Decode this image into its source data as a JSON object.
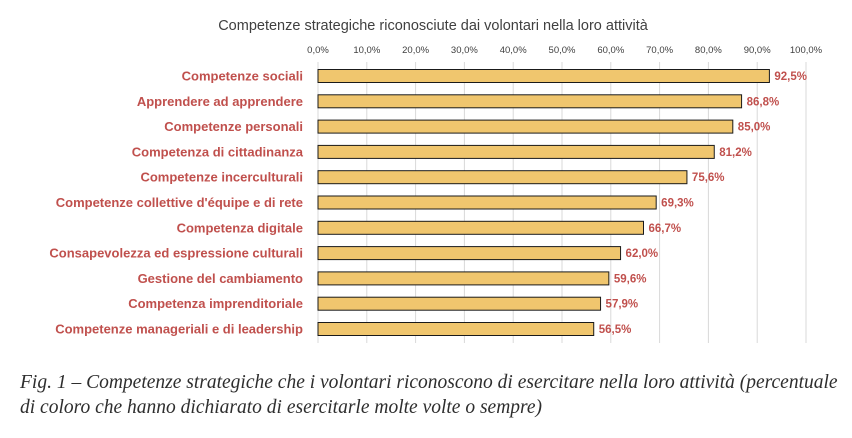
{
  "chart_data": {
    "type": "bar",
    "orientation": "horizontal",
    "title": "Competenze strategiche riconosciute dai volontari nella loro attività",
    "categories": [
      "Competenze sociali",
      "Apprendere ad apprendere",
      "Competenze personali",
      "Competenza di cittadinanza",
      "Competenze incerculturali",
      "Competenze collettive d'équipe e di rete",
      "Competenza digitale",
      "Consapevolezza ed espressione culturali",
      "Gestione del cambiamento",
      "Competenza imprenditoriale",
      "Competenze manageriali e di leadership"
    ],
    "values": [
      92.5,
      86.8,
      85.0,
      81.2,
      75.6,
      69.3,
      66.7,
      62.0,
      59.6,
      57.9,
      56.5
    ],
    "data_labels": [
      "92,5%",
      "86,8%",
      "85,0%",
      "81,2%",
      "75,6%",
      "69,3%",
      "66,7%",
      "62,0%",
      "59,6%",
      "57,9%",
      "56,5%"
    ],
    "xlim": [
      0,
      100
    ],
    "x_ticks": [
      "0,0%",
      "10,0%",
      "20,0%",
      "30,0%",
      "40,0%",
      "50,0%",
      "60,0%",
      "70,0%",
      "80,0%",
      "90,0%",
      "100,0%"
    ],
    "x_axis_position": "top",
    "grid": true,
    "colors": {
      "bar_fill": "#f0c66e",
      "bar_stroke": "#1a1a1a",
      "label_color": "#c0504d",
      "grid": "#d9d9d9"
    }
  },
  "caption": "Fig. 1 – Competenze strategiche che i volontari riconoscono di esercitare nella loro attività (percentuale di coloro che hanno dichiarato di esercitarle molte volte o sempre)"
}
